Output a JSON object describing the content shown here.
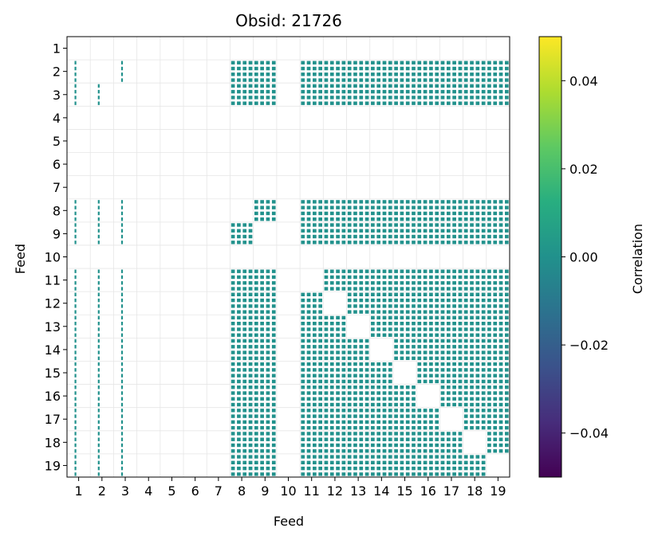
{
  "chart_data": {
    "type": "heatmap",
    "title": "Obsid: 21726",
    "xlabel": "Feed",
    "ylabel": "Feed",
    "x_ticks": [
      "1",
      "2",
      "3",
      "4",
      "5",
      "6",
      "7",
      "8",
      "9",
      "10",
      "11",
      "12",
      "13",
      "14",
      "15",
      "16",
      "17",
      "18",
      "19"
    ],
    "y_ticks": [
      "1",
      "2",
      "3",
      "4",
      "5",
      "6",
      "7",
      "8",
      "9",
      "10",
      "11",
      "12",
      "13",
      "14",
      "15",
      "16",
      "17",
      "18",
      "19"
    ],
    "grid": true,
    "colorbar": {
      "label": "Correlation",
      "colormap": "viridis",
      "range": [
        -0.05,
        0.05
      ],
      "ticks": [
        -0.04,
        -0.02,
        0.0,
        0.02,
        0.04
      ],
      "tick_labels": [
        "−0.04",
        "−0.02",
        "0.00",
        "0.02",
        "0.04"
      ]
    },
    "fill_value": 0.0,
    "fill_color": "#21918c",
    "active_columns_per_feed": [
      1,
      1,
      1,
      0,
      0,
      0,
      0,
      1,
      1,
      0,
      1,
      1,
      1,
      1,
      1,
      1,
      1,
      1,
      1
    ],
    "active_rows_per_feed": [
      0,
      1,
      1,
      0,
      0,
      0,
      0,
      1,
      1,
      0,
      1,
      1,
      1,
      1,
      1,
      1,
      1,
      1,
      1
    ]
  }
}
